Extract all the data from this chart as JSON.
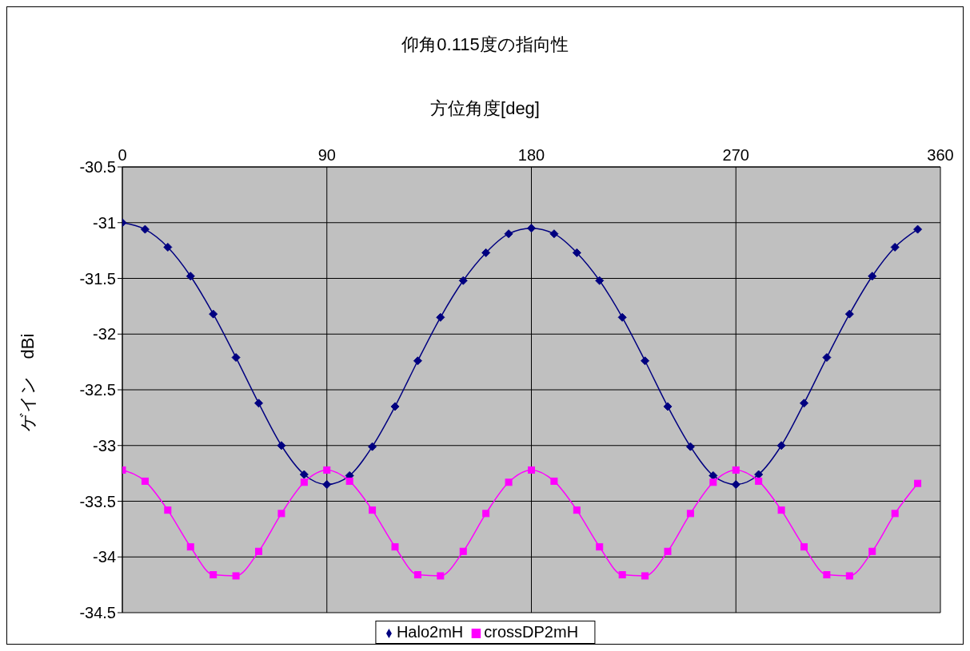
{
  "chart_data": {
    "type": "line",
    "title": "仰角0.115度の指向性",
    "xlabel": "方位角度[deg]",
    "ylabel": "ゲイン　dBi",
    "x": [
      0,
      10,
      20,
      30,
      40,
      50,
      60,
      70,
      80,
      90,
      100,
      110,
      120,
      130,
      140,
      150,
      160,
      170,
      180,
      190,
      200,
      210,
      220,
      230,
      240,
      250,
      260,
      270,
      280,
      290,
      300,
      310,
      320,
      330,
      340,
      350
    ],
    "series": [
      {
        "name": "Halo2mH",
        "color": "#000080",
        "marker": "diamond",
        "values": [
          -31.0,
          -31.06,
          -31.22,
          -31.48,
          -31.82,
          -32.21,
          -32.62,
          -33.0,
          -33.26,
          -33.35,
          -33.27,
          -33.01,
          -32.65,
          -32.24,
          -31.85,
          -31.52,
          -31.27,
          -31.1,
          -31.05,
          -31.1,
          -31.27,
          -31.52,
          -31.85,
          -32.24,
          -32.65,
          -33.01,
          -33.27,
          -33.35,
          -33.26,
          -33.0,
          -32.62,
          -32.21,
          -31.82,
          -31.48,
          -31.22,
          -31.06
        ]
      },
      {
        "name": "crossDP2mH",
        "color": "#ff00ff",
        "marker": "square",
        "values": [
          -33.22,
          -33.32,
          -33.58,
          -33.91,
          -34.16,
          -34.17,
          -33.95,
          -33.61,
          -33.33,
          -33.22,
          -33.32,
          -33.58,
          -33.91,
          -34.16,
          -34.17,
          -33.95,
          -33.61,
          -33.33,
          -33.22,
          -33.32,
          -33.58,
          -33.91,
          -34.16,
          -34.17,
          -33.95,
          -33.61,
          -33.33,
          -33.22,
          -33.32,
          -33.58,
          -33.91,
          -34.16,
          -34.17,
          -33.95,
          -33.61,
          -33.34
        ]
      }
    ],
    "xlim": [
      0,
      360
    ],
    "xticks": [
      0,
      90,
      180,
      270,
      360
    ],
    "ylim": [
      -34.5,
      -30.5
    ],
    "yticks": [
      -30.5,
      -31,
      -31.5,
      -32,
      -32.5,
      -33,
      -33.5,
      -34,
      -34.5
    ],
    "grid": true,
    "legend": "bottom",
    "line_style": "solid"
  }
}
